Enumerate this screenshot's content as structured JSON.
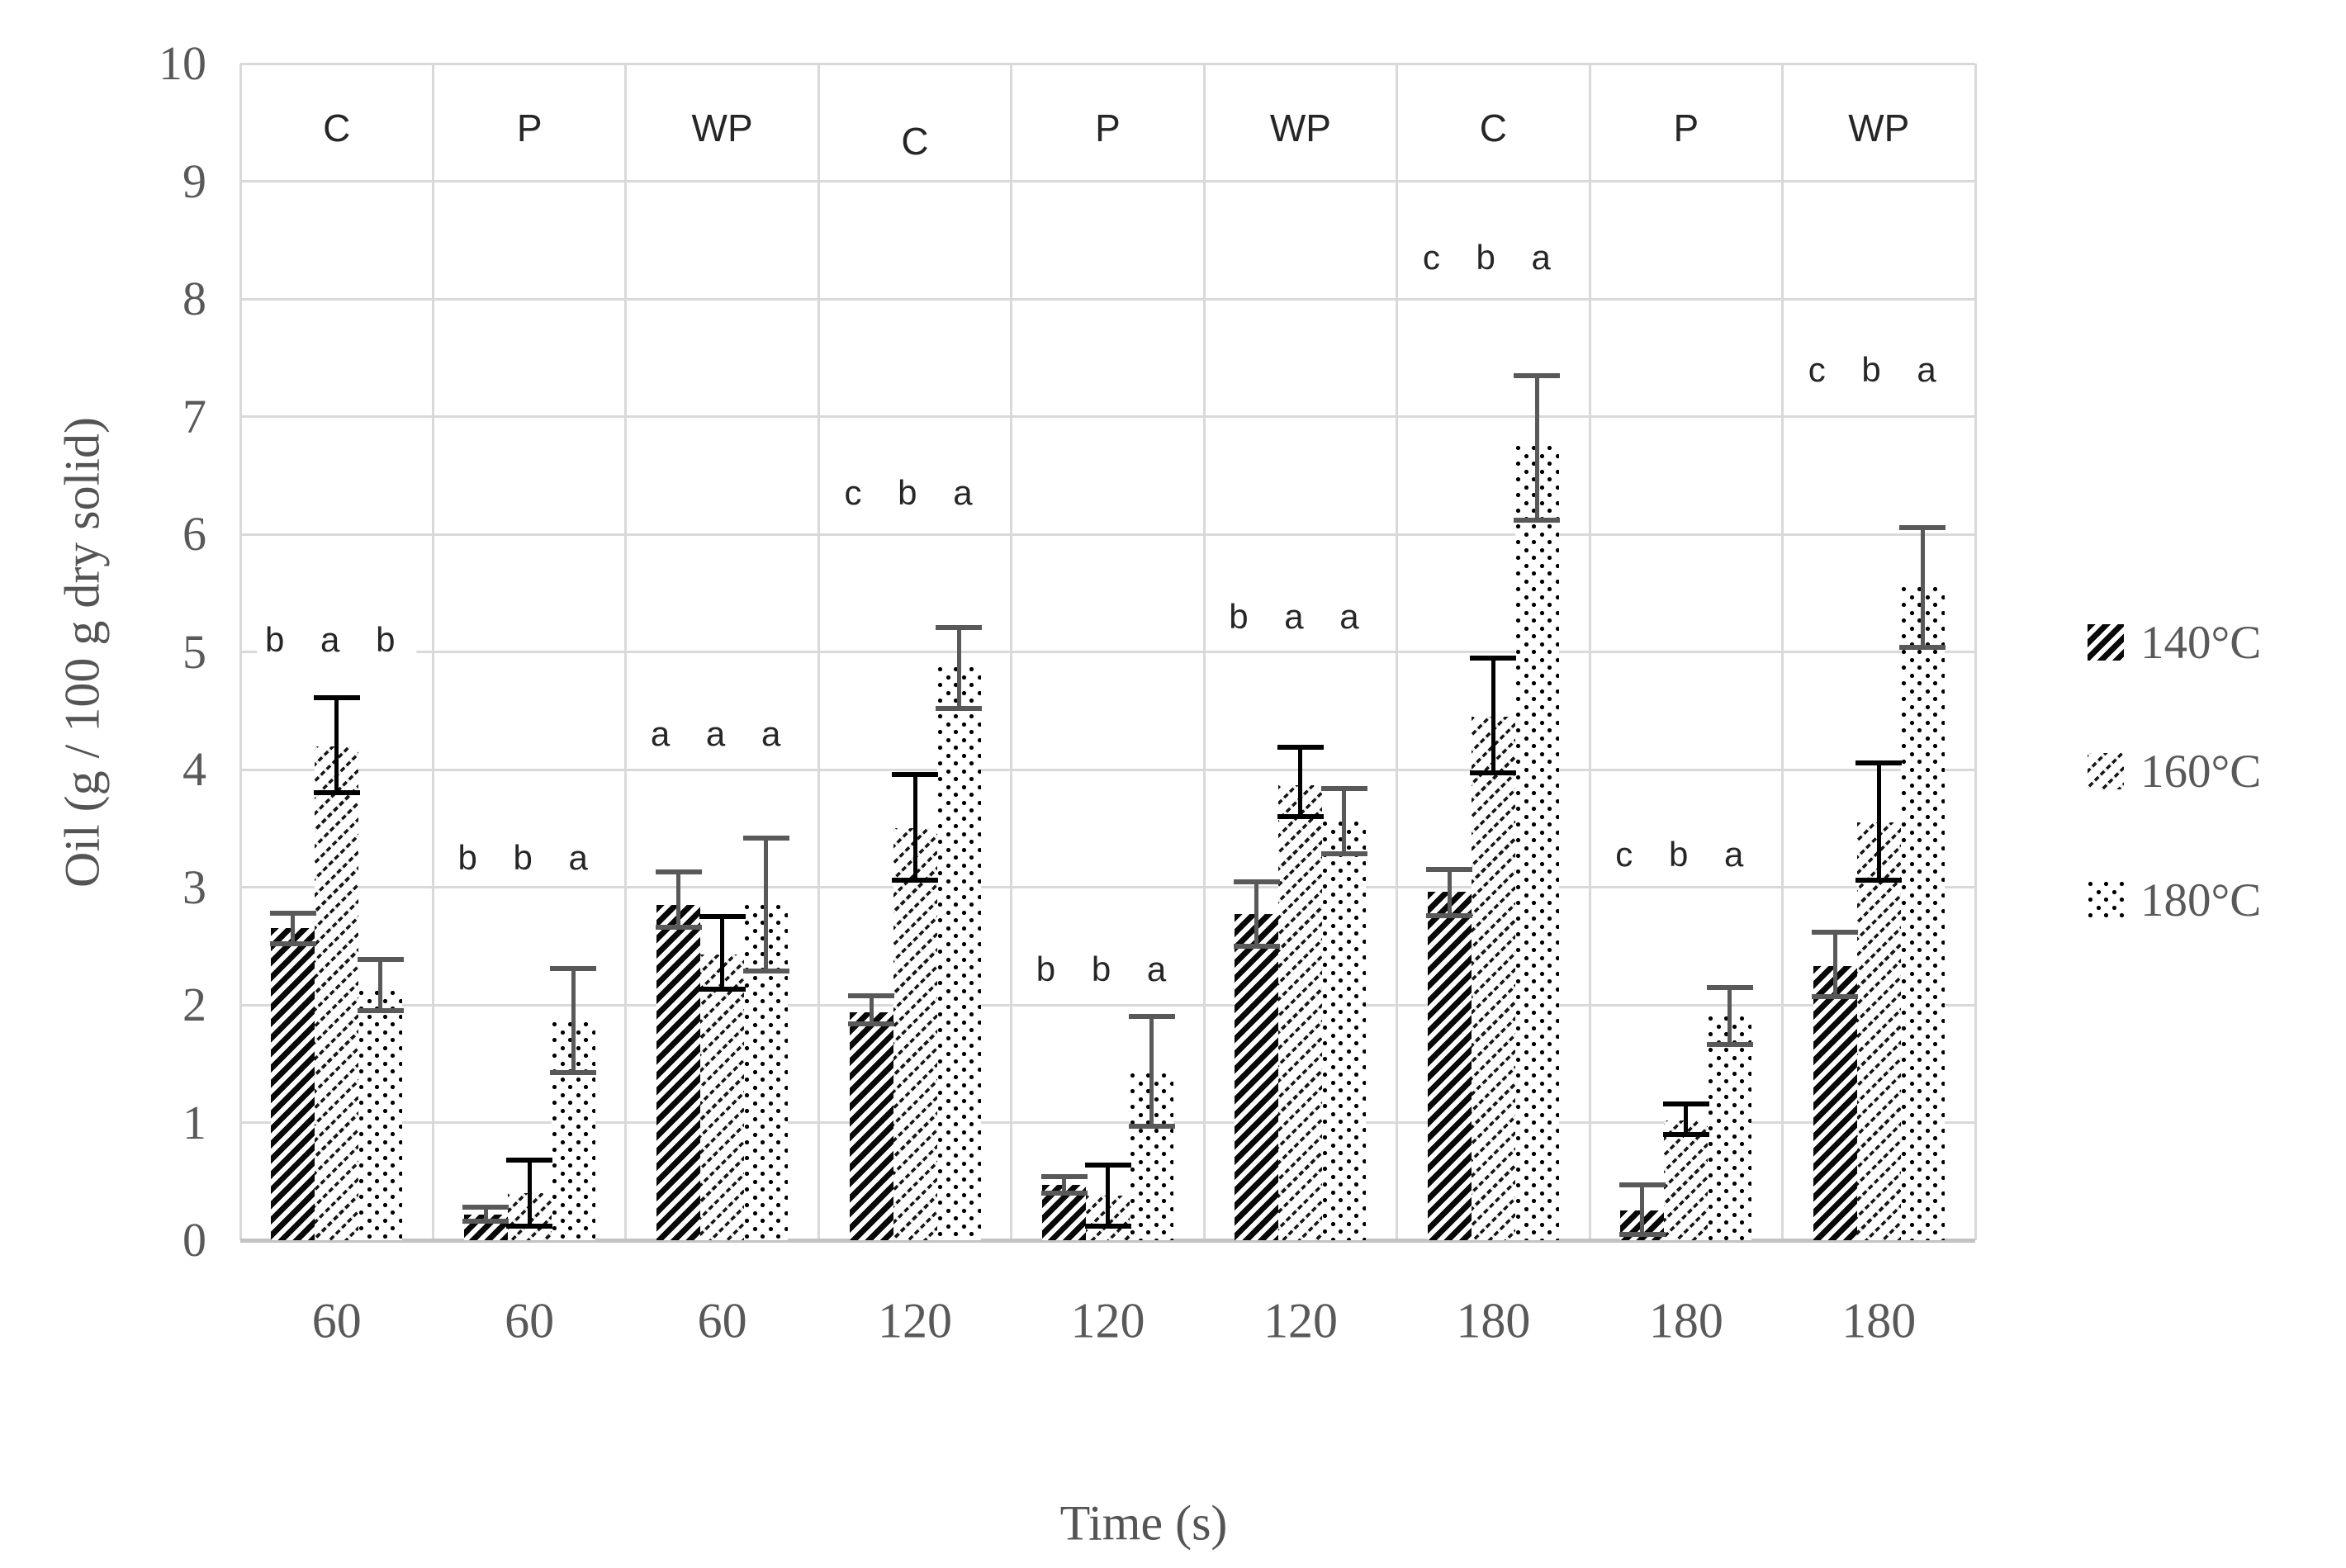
{
  "chart_data": {
    "type": "bar",
    "title": "",
    "xlabel": "Time (s)",
    "ylabel": "Oil (g / 100 g dry solid)",
    "ylim": [
      0,
      10
    ],
    "yticks": [
      0,
      1,
      2,
      3,
      4,
      5,
      6,
      7,
      8,
      9,
      10
    ],
    "grid": true,
    "legend_position": "right",
    "categories": [
      "60",
      "60",
      "60",
      "120",
      "120",
      "120",
      "180",
      "180",
      "180"
    ],
    "treatments": [
      "C",
      "P",
      "WP",
      "C",
      "P",
      "WP",
      "C",
      "P",
      "WP"
    ],
    "series": [
      {
        "name": "140°C",
        "pattern": "dense-diagonal-hatch",
        "error_bar_color": "#595959",
        "values": [
          2.65,
          0.22,
          2.85,
          1.94,
          0.47,
          2.77,
          2.96,
          0.25,
          2.33
        ],
        "err_low": [
          2.5,
          0.14,
          2.64,
          1.82,
          0.38,
          2.48,
          2.74,
          0.03,
          2.05
        ],
        "err_high": [
          2.8,
          0.3,
          3.15,
          2.1,
          0.56,
          3.07,
          3.17,
          0.49,
          2.64
        ]
      },
      {
        "name": "160°C",
        "pattern": "light-diagonal-hatch",
        "error_bar_color": "#000000",
        "values": [
          4.2,
          0.4,
          2.43,
          3.5,
          0.38,
          3.87,
          4.45,
          1.02,
          3.55
        ],
        "err_low": [
          3.78,
          0.1,
          2.11,
          3.04,
          0.1,
          3.58,
          3.95,
          0.88,
          3.04
        ],
        "err_high": [
          4.63,
          0.7,
          2.77,
          3.98,
          0.66,
          4.21,
          4.97,
          1.18,
          4.08
        ]
      },
      {
        "name": "180°C",
        "pattern": "dot-grid",
        "error_bar_color": "#595959",
        "values": [
          2.12,
          1.85,
          2.85,
          4.87,
          1.42,
          3.56,
          6.75,
          1.9,
          5.55
        ],
        "err_low": [
          1.93,
          1.4,
          2.27,
          4.5,
          0.95,
          3.26,
          6.1,
          1.64,
          5.02
        ],
        "err_high": [
          2.41,
          2.33,
          3.44,
          5.23,
          1.92,
          3.86,
          7.37,
          2.17,
          6.08
        ]
      }
    ],
    "significance_labels": [
      {
        "letters": "b a b",
        "y": 5.1
      },
      {
        "letters": "b b a",
        "y": 3.25
      },
      {
        "letters": "a a a",
        "y": 4.3
      },
      {
        "letters": "c b a",
        "y": 6.35
      },
      {
        "letters": "b b a",
        "y": 2.3
      },
      {
        "letters": "b a a",
        "y": 5.3
      },
      {
        "letters": "c b a",
        "y": 8.35
      },
      {
        "letters": "c b a",
        "y": 3.28
      },
      {
        "letters": "c b a",
        "y": 7.4
      }
    ],
    "treatment_label_y": 9.45
  },
  "colors": {
    "gridline": "#d9d9d9",
    "axis_line": "#c3c3c3",
    "tick_text": "#595959",
    "axis_title_text": "#545454",
    "letter_text": "#262626",
    "error_140": "#595959",
    "error_160": "#000000",
    "error_180": "#595959"
  }
}
